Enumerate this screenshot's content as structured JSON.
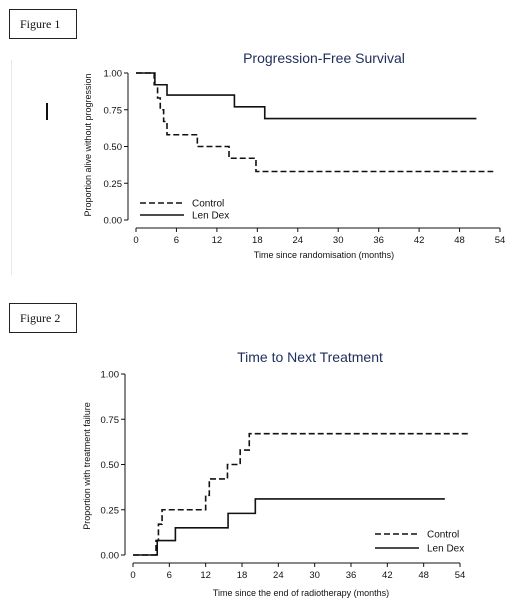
{
  "figure_labels": [
    "Figure 1",
    "Figure 2"
  ],
  "chart_data": [
    {
      "type": "line",
      "step": true,
      "title": "Progression-Free Survival",
      "xlabel": "Time since randomisation (months)",
      "ylabel": "Proportion alive without progression",
      "xlim": [
        0,
        54
      ],
      "ylim": [
        0,
        1
      ],
      "xticks": [
        "0",
        "6",
        "12",
        "18",
        "24",
        "30",
        "36",
        "42",
        "48",
        "54"
      ],
      "yticks": [
        "0.00",
        "0.25",
        "0.50",
        "0.75",
        "1.00"
      ],
      "legend_position": "bottom-left",
      "grid": false,
      "series": [
        {
          "name": "Control",
          "style": "dashed",
          "x": [
            0,
            2.7,
            3.2,
            3.6,
            4.1,
            4.6,
            9.1,
            13.8,
            17.8,
            53
          ],
          "y": [
            1.0,
            0.92,
            0.83,
            0.75,
            0.67,
            0.58,
            0.5,
            0.42,
            0.33,
            0.33
          ]
        },
        {
          "name": "Len Dex",
          "style": "solid",
          "x": [
            0,
            2.8,
            4.6,
            14.6,
            19.1,
            50.5
          ],
          "y": [
            1.0,
            0.92,
            0.85,
            0.77,
            0.69,
            0.69
          ]
        }
      ]
    },
    {
      "type": "line",
      "step": true,
      "title": "Time to Next Treatment",
      "xlabel": "Time since the end of radiotherapy (months)",
      "ylabel": "Proportion with treatment failure",
      "xlim": [
        0,
        54
      ],
      "ylim": [
        0,
        1
      ],
      "xticks": [
        "0",
        "6",
        "12",
        "18",
        "24",
        "30",
        "36",
        "42",
        "48",
        "54"
      ],
      "yticks": [
        "0.00",
        "0.25",
        "0.50",
        "0.75",
        "1.00"
      ],
      "legend_position": "bottom-right",
      "grid": false,
      "series": [
        {
          "name": "Control",
          "style": "dashed",
          "x": [
            0,
            3.8,
            4.2,
            4.8,
            12.0,
            12.6,
            15.6,
            17.7,
            19.2,
            20.2,
            55.5
          ],
          "y": [
            0,
            0.08,
            0.17,
            0.25,
            0.33,
            0.42,
            0.5,
            0.58,
            0.67,
            0.67,
            0.67
          ]
        },
        {
          "name": "Len Dex",
          "style": "solid",
          "x": [
            0,
            4.0,
            7.0,
            15.7,
            20.2,
            51.5
          ],
          "y": [
            0,
            0.08,
            0.15,
            0.23,
            0.31,
            0.31
          ]
        }
      ]
    }
  ]
}
